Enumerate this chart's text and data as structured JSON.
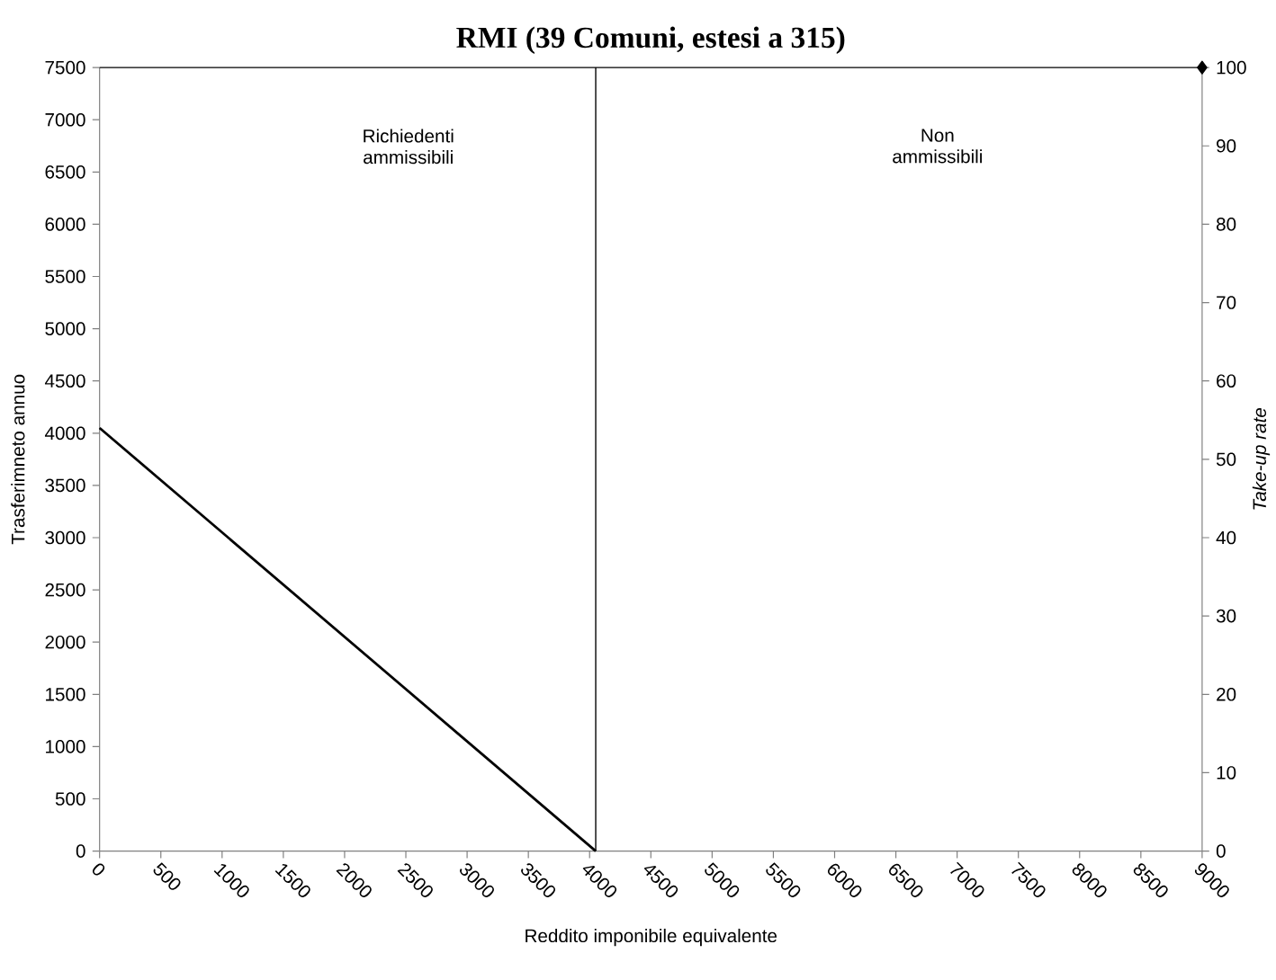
{
  "chart_data": {
    "type": "line",
    "title": "RMI (39 Comuni, estesi a 315)",
    "xlabel": "Reddito imponibile equivalente",
    "ylabel": "Trasferimneto annuo",
    "y2label": "Take-up rate",
    "xlim": [
      0,
      9000
    ],
    "xticks": [
      0,
      500,
      1000,
      1500,
      2000,
      2500,
      3000,
      3500,
      4000,
      4500,
      5000,
      5500,
      6000,
      6500,
      7000,
      7500,
      8000,
      8500,
      9000
    ],
    "ylim": [
      0,
      7500
    ],
    "yticks": [
      0,
      500,
      1000,
      1500,
      2000,
      2500,
      3000,
      3500,
      4000,
      4500,
      5000,
      5500,
      6000,
      6500,
      7000,
      7500
    ],
    "y2lim": [
      0,
      100
    ],
    "y2ticks": [
      0,
      10,
      20,
      30,
      40,
      50,
      60,
      70,
      80,
      90,
      100
    ],
    "series": [
      {
        "color": "#000000",
        "x": [
          0,
          4050
        ],
        "values": [
          4050,
          0
        ],
        "marker": "none"
      },
      {
        "type": "scatter",
        "color": "#000000",
        "x": [
          9000
        ],
        "values": [
          100
        ],
        "axis": "y2",
        "marker": "diamond"
      }
    ],
    "ref_lines": [
      {
        "axis": "x",
        "value": 4050,
        "color": "#000000"
      }
    ],
    "annotations": [
      "Richiedenti ammissibili",
      "Non ammissibili"
    ],
    "grid": false
  }
}
